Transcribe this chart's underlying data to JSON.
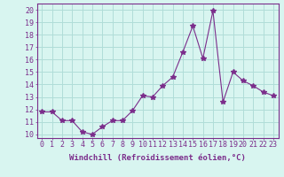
{
  "x": [
    0,
    1,
    2,
    3,
    4,
    5,
    6,
    7,
    8,
    9,
    10,
    11,
    12,
    13,
    14,
    15,
    16,
    17,
    18,
    19,
    20,
    21,
    22,
    23
  ],
  "y": [
    11.8,
    11.8,
    11.1,
    11.1,
    10.2,
    10.0,
    10.6,
    11.1,
    11.1,
    11.9,
    13.1,
    13.0,
    13.9,
    14.6,
    16.6,
    18.7,
    16.1,
    19.9,
    12.6,
    15.0,
    14.3,
    13.9,
    13.4,
    13.1
  ],
  "line_color": "#7b2d8b",
  "marker": "*",
  "marker_size": 4,
  "bg_color": "#d8f5f0",
  "grid_color": "#b0ddd8",
  "xlabel": "Windchill (Refroidissement éolien,°C)",
  "xlabel_fontsize": 6.5,
  "ylabel_ticks": [
    10,
    11,
    12,
    13,
    14,
    15,
    16,
    17,
    18,
    19,
    20
  ],
  "ylim": [
    9.7,
    20.5
  ],
  "xlim": [
    -0.5,
    23.5
  ],
  "tick_fontsize": 6,
  "axis_label_color": "#7b2d8b",
  "tick_color": "#7b2d8b",
  "spine_color": "#7b2d8b"
}
